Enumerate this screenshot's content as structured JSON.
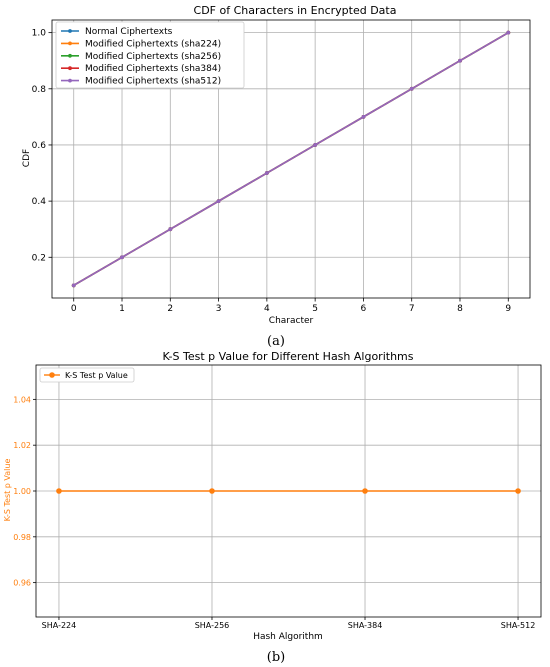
{
  "chart_data": [
    {
      "type": "line",
      "title": "CDF of Characters in Encrypted Data",
      "xlabel": "Character",
      "ylabel": "CDF",
      "x": [
        0,
        1,
        2,
        3,
        4,
        5,
        6,
        7,
        8,
        9
      ],
      "xticks": [
        "0",
        "1",
        "2",
        "3",
        "4",
        "5",
        "6",
        "7",
        "8",
        "9"
      ],
      "yticks": [
        "0.2",
        "0.4",
        "0.6",
        "0.8",
        "1.0"
      ],
      "ylim": [
        0.055,
        1.045
      ],
      "xlim": [
        -0.45,
        9.45
      ],
      "grid": true,
      "legend_position": "top-left",
      "series": [
        {
          "name": "Normal Ciphertexts",
          "color": "#1f77b4",
          "values": [
            0.1,
            0.2,
            0.3,
            0.4,
            0.5,
            0.6,
            0.7,
            0.8,
            0.9,
            1.0
          ]
        },
        {
          "name": "Modified Ciphertexts (sha224)",
          "color": "#ff7f0e",
          "values": [
            0.1,
            0.2,
            0.3,
            0.4,
            0.5,
            0.6,
            0.7,
            0.8,
            0.9,
            1.0
          ]
        },
        {
          "name": "Modified Ciphertexts (sha256)",
          "color": "#2ca02c",
          "values": [
            0.1,
            0.2,
            0.3,
            0.4,
            0.5,
            0.6,
            0.7,
            0.8,
            0.9,
            1.0
          ]
        },
        {
          "name": "Modified Ciphertexts (sha384)",
          "color": "#d62728",
          "values": [
            0.1,
            0.2,
            0.3,
            0.4,
            0.5,
            0.6,
            0.7,
            0.8,
            0.9,
            1.0
          ]
        },
        {
          "name": "Modified Ciphertexts (sha512)",
          "color": "#9467bd",
          "values": [
            0.1,
            0.2,
            0.3,
            0.4,
            0.5,
            0.6,
            0.7,
            0.8,
            0.9,
            1.0
          ]
        }
      ],
      "caption": "(a)"
    },
    {
      "type": "line",
      "title": "K-S Test p Value for Different Hash Algorithms",
      "xlabel": "Hash Algorithm",
      "ylabel": "K-S Test p Value",
      "categories": [
        "SHA-224",
        "SHA-256",
        "SHA-384",
        "SHA-512"
      ],
      "yticks": [
        "0.96",
        "0.98",
        "1.00",
        "1.02",
        "1.04"
      ],
      "ylim": [
        0.945,
        1.055
      ],
      "grid": true,
      "legend_position": "top-left",
      "series": [
        {
          "name": "K-S Test p Value",
          "color": "#ff7f0e",
          "values": [
            1.0,
            1.0,
            1.0,
            1.0
          ]
        }
      ],
      "caption": "(b)"
    }
  ]
}
